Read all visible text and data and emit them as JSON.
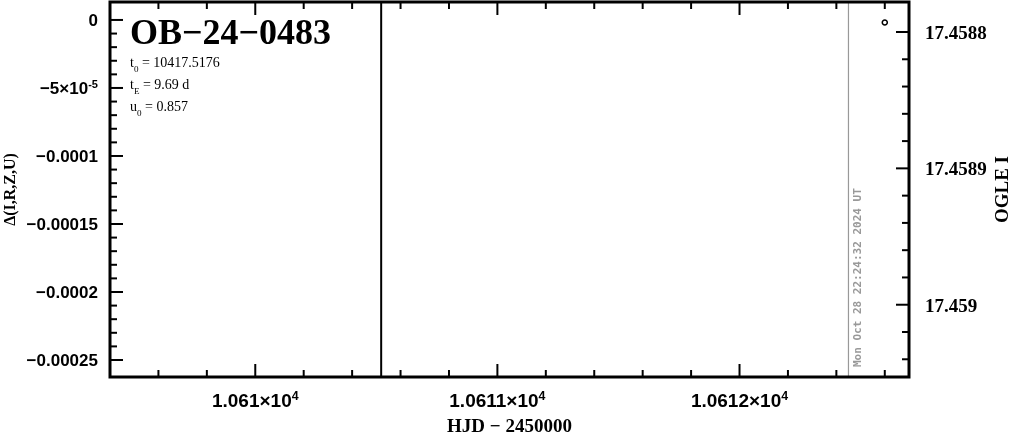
{
  "chart_data": {
    "type": "scatter",
    "title": "OB−24−0483",
    "annotations": [
      "t$_{0}$ = 10417.5176",
      "t$_{E}$ = 9.69 d",
      "u$_{0}$ = 0.857",
      {
        "text": "Mon Oct 28 22:24:32 2024 UT",
        "x": 10612.45
      }
    ],
    "xlabel": "HJD − 2450000",
    "ylabel": "Δ(I,R,Z,U)",
    "y2label": "OGLE I",
    "xlim": [
      10609.4,
      10612.7
    ],
    "xticks": [
      {
        "value": 10609.6,
        "label": null
      },
      {
        "value": 10609.8,
        "label": null
      },
      {
        "value": 10610,
        "label": "1.061×10$^{4}$"
      },
      {
        "value": 10610.2,
        "label": null
      },
      {
        "value": 10610.4,
        "label": null
      },
      {
        "value": 10610.6,
        "label": null
      },
      {
        "value": 10610.8,
        "label": null
      },
      {
        "value": 10611,
        "label": "1.0611×10$^{4}$"
      },
      {
        "value": 10611.2,
        "label": null
      },
      {
        "value": 10611.4,
        "label": null
      },
      {
        "value": 10611.6,
        "label": null
      },
      {
        "value": 10611.8,
        "label": null
      },
      {
        "value": 10612,
        "label": "1.0612×10$^{4}$"
      },
      {
        "value": 10612.2,
        "label": null
      },
      {
        "value": 10612.4,
        "label": null
      },
      {
        "value": 10612.6,
        "label": null
      }
    ],
    "ylim": [
      -0.0002625,
      1.32e-05
    ],
    "yticks": [
      {
        "value": 0,
        "label": "0"
      },
      {
        "value": -1e-05,
        "label": null
      },
      {
        "value": -2e-05,
        "label": null
      },
      {
        "value": -3e-05,
        "label": null
      },
      {
        "value": -4e-05,
        "label": null
      },
      {
        "value": -5e-05,
        "label": "−5×10$^{-5}$"
      },
      {
        "value": -6e-05,
        "label": null
      },
      {
        "value": -7e-05,
        "label": null
      },
      {
        "value": -8e-05,
        "label": null
      },
      {
        "value": -9e-05,
        "label": null
      },
      {
        "value": -0.0001,
        "label": "−0.0001"
      },
      {
        "value": -0.00011,
        "label": null
      },
      {
        "value": -0.00012,
        "label": null
      },
      {
        "value": -0.00013,
        "label": null
      },
      {
        "value": -0.00014,
        "label": null
      },
      {
        "value": -0.00015,
        "label": "−0.00015"
      },
      {
        "value": -0.00016,
        "label": null
      },
      {
        "value": -0.00017,
        "label": null
      },
      {
        "value": -0.00018,
        "label": null
      },
      {
        "value": -0.00019,
        "label": null
      },
      {
        "value": -0.0002,
        "label": "−0.0002"
      },
      {
        "value": -0.00021,
        "label": null
      },
      {
        "value": -0.00022,
        "label": null
      },
      {
        "value": -0.00023,
        "label": null
      },
      {
        "value": -0.00024,
        "label": null
      },
      {
        "value": -0.00025,
        "label": "−0.00025"
      }
    ],
    "y2lim": [
      17.459053,
      17.458778
    ],
    "y2ticks": [
      {
        "value": 17.4588,
        "label": "17.4588"
      },
      {
        "value": 17.45882,
        "label": null
      },
      {
        "value": 17.45884,
        "label": null
      },
      {
        "value": 17.45886,
        "label": null
      },
      {
        "value": 17.45888,
        "label": null
      },
      {
        "value": 17.4589,
        "label": "17.4589"
      },
      {
        "value": 17.45892,
        "label": null
      },
      {
        "value": 17.45894,
        "label": null
      },
      {
        "value": 17.45896,
        "label": null
      },
      {
        "value": 17.45898,
        "label": null
      },
      {
        "value": 17.459,
        "label": "17.459"
      },
      {
        "value": 17.45902,
        "label": null
      },
      {
        "value": 17.45904,
        "label": null
      }
    ],
    "ref_lines": [
      {
        "axis": "x",
        "value": 10610.52,
        "color": "#000000"
      },
      {
        "axis": "x",
        "value": 10612.45,
        "color": "#999999"
      }
    ],
    "series": [
      {
        "axis": "y2",
        "color": "#000000",
        "x": [
          10612.6
        ],
        "values": [
          17.458793
        ]
      }
    ],
    "marker": "circle",
    "grid": false
  }
}
